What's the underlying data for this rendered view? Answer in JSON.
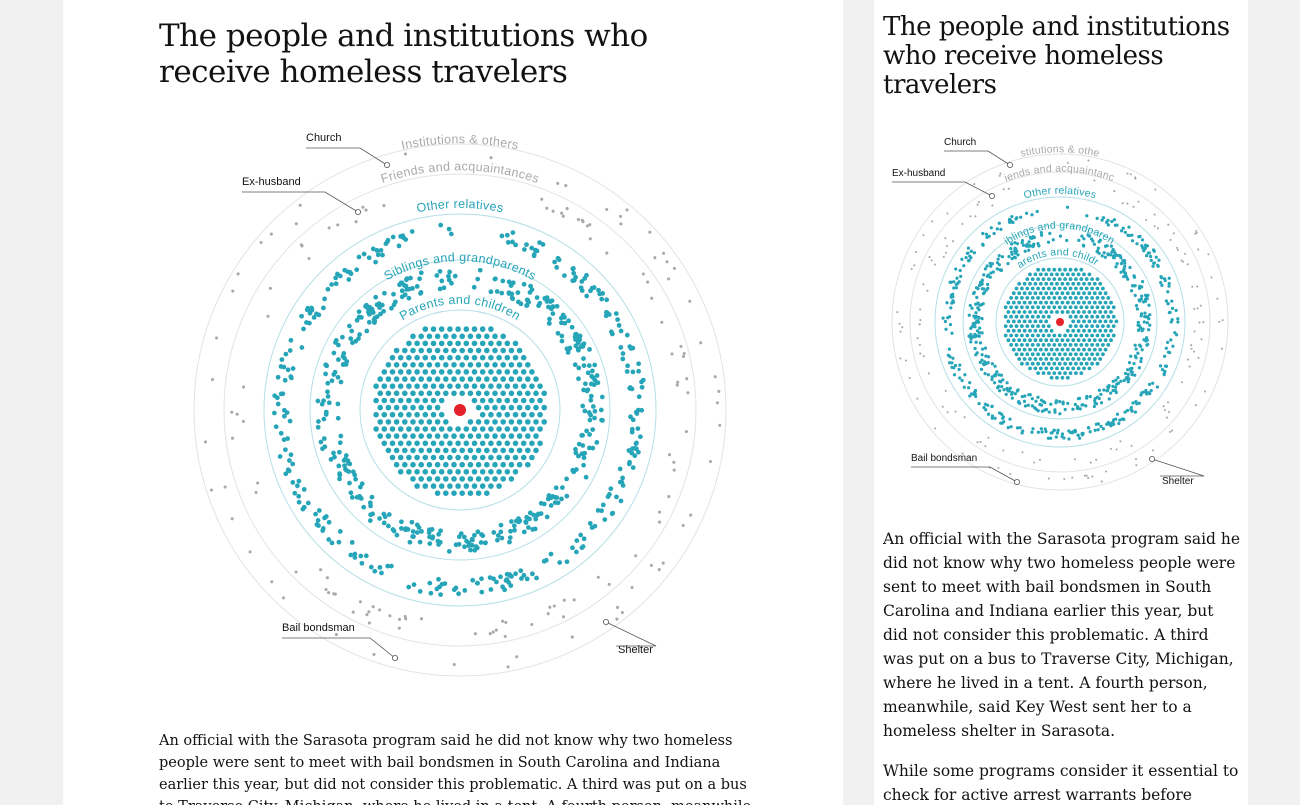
{
  "article": {
    "title": "The people and institutions who receive homeless travelers",
    "paragraphs": [
      "An official with the Sarasota program said he did not know why two homeless people were sent to meet with bail bondsmen in South Carolina and Indiana earlier this year, but did not consider this problematic. A third was put on a bus to Traverse City, Michigan, where he lived in a tent. A fourth person, meanwhile, said Key West sent her to a homeless shelter in Sarasota.",
      "While some programs consider it essential to check for active arrest warrants before"
    ]
  },
  "chart_data": {
    "type": "radial-dot",
    "rings": [
      {
        "label": "Parents and children",
        "color": "#27a5b8"
      },
      {
        "label": "Siblings and grandparents",
        "color": "#27a5b8"
      },
      {
        "label": "Other relatives",
        "color": "#27a5b8"
      },
      {
        "label": "Friends and acquaintances",
        "color": "#a9a9a9"
      },
      {
        "label": "Institutions & others",
        "color": "#a9a9a9"
      }
    ],
    "annotations": {
      "church": "Church",
      "ex_husband": "Ex-husband",
      "bail_bondsman": "Bail bondsman",
      "shelter": "Shelter"
    }
  },
  "colors": {
    "teal": "#27a5b8",
    "teal_ring": "#b5dfe6",
    "grey_dot": "#a9a9a9",
    "grey_ring": "#e3e3e3",
    "center": "#e3212a",
    "annotation_line": "#555555"
  }
}
